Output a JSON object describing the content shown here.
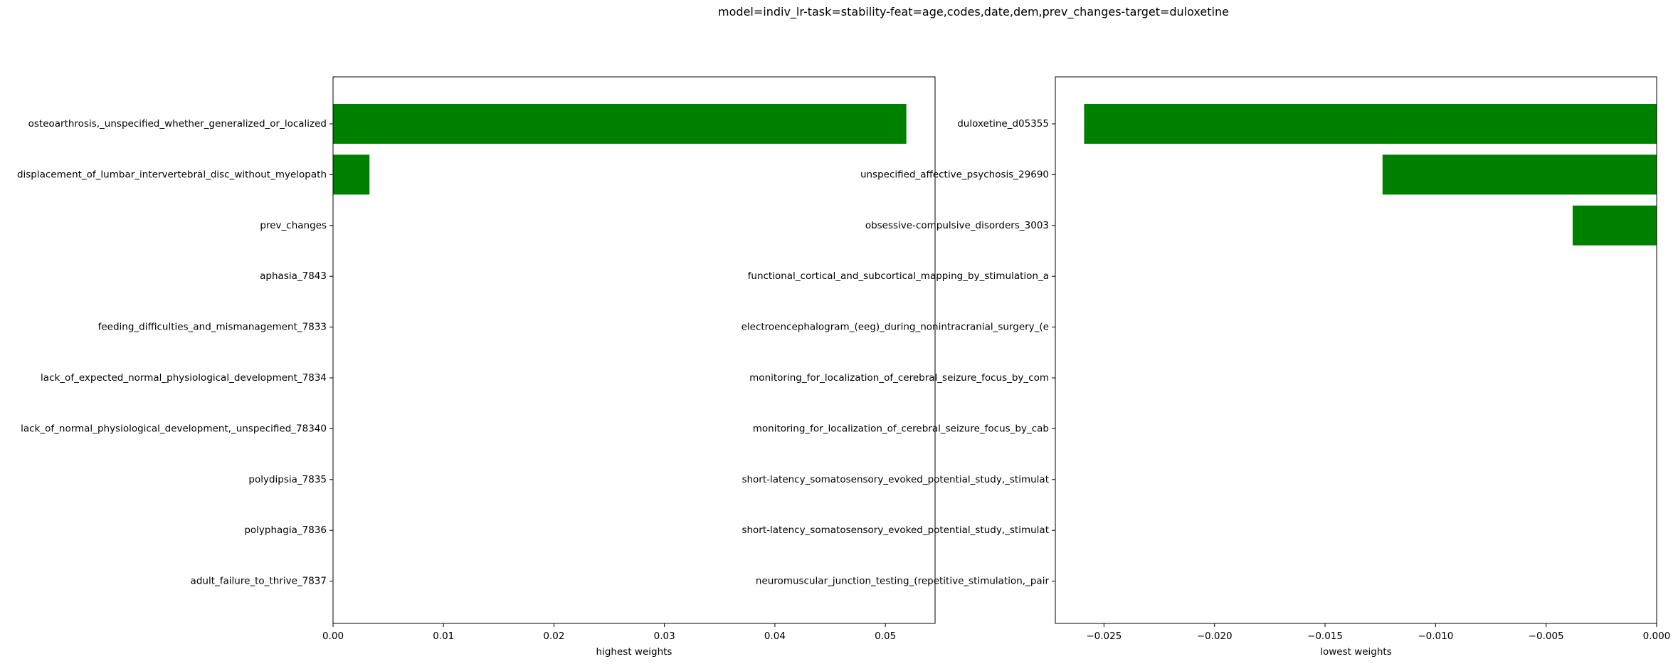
{
  "figure_title": "model=indiv_lr-task=stability-feat=age,codes,date,dem,prev_changes-target=duloxetine",
  "colors": {
    "bar": "#008000",
    "axis": "#000000",
    "background": "#ffffff"
  },
  "chart_data": [
    {
      "type": "bar",
      "orientation": "horizontal",
      "title": "",
      "xlabel": "highest weights",
      "ylabel": "",
      "xlim": [
        0,
        0.0545
      ],
      "xticks": [
        0.0,
        0.01,
        0.02,
        0.03,
        0.04,
        0.05
      ],
      "xtick_labels": [
        "0.00",
        "0.01",
        "0.02",
        "0.03",
        "0.04",
        "0.05"
      ],
      "grid": false,
      "categories": [
        "osteoarthrosis,_unspecified_whether_generalized_or_localized",
        "displacement_of_lumbar_intervertebral_disc_without_myelopath",
        "prev_changes",
        "aphasia_7843",
        "feeding_difficulties_and_mismanagement_7833",
        "lack_of_expected_normal_physiological_development_7834",
        "lack_of_normal_physiological_development,_unspecified_78340",
        "polydipsia_7835",
        "polyphagia_7836",
        "adult_failure_to_thrive_7837"
      ],
      "values": [
        0.0519,
        0.0033,
        0,
        0,
        0,
        0,
        0,
        0,
        0,
        0
      ]
    },
    {
      "type": "bar",
      "orientation": "horizontal",
      "title": "",
      "xlabel": "lowest weights",
      "ylabel": "",
      "xlim": [
        -0.0272,
        0
      ],
      "xticks": [
        -0.025,
        -0.02,
        -0.015,
        -0.01,
        -0.005,
        0.0
      ],
      "xtick_labels": [
        "−0.025",
        "−0.020",
        "−0.015",
        "−0.010",
        "−0.005",
        "0.000"
      ],
      "grid": false,
      "categories": [
        "duloxetine_d05355",
        "unspecified_affective_psychosis_29690",
        "obsessive-compulsive_disorders_3003",
        "functional_cortical_and_subcortical_mapping_by_stimulation_a",
        "electroencephalogram_(eeg)_during_nonintracranial_surgery_(e",
        "monitoring_for_localization_of_cerebral_seizure_focus_by_com",
        "monitoring_for_localization_of_cerebral_seizure_focus_by_cab",
        "short-latency_somatosensory_evoked_potential_study,_stimulat",
        "short-latency_somatosensory_evoked_potential_study,_stimulat",
        "neuromuscular_junction_testing_(repetitive_stimulation,_pair"
      ],
      "values": [
        -0.0259,
        -0.0124,
        -0.0038,
        0,
        0,
        0,
        0,
        0,
        0,
        0
      ]
    }
  ]
}
